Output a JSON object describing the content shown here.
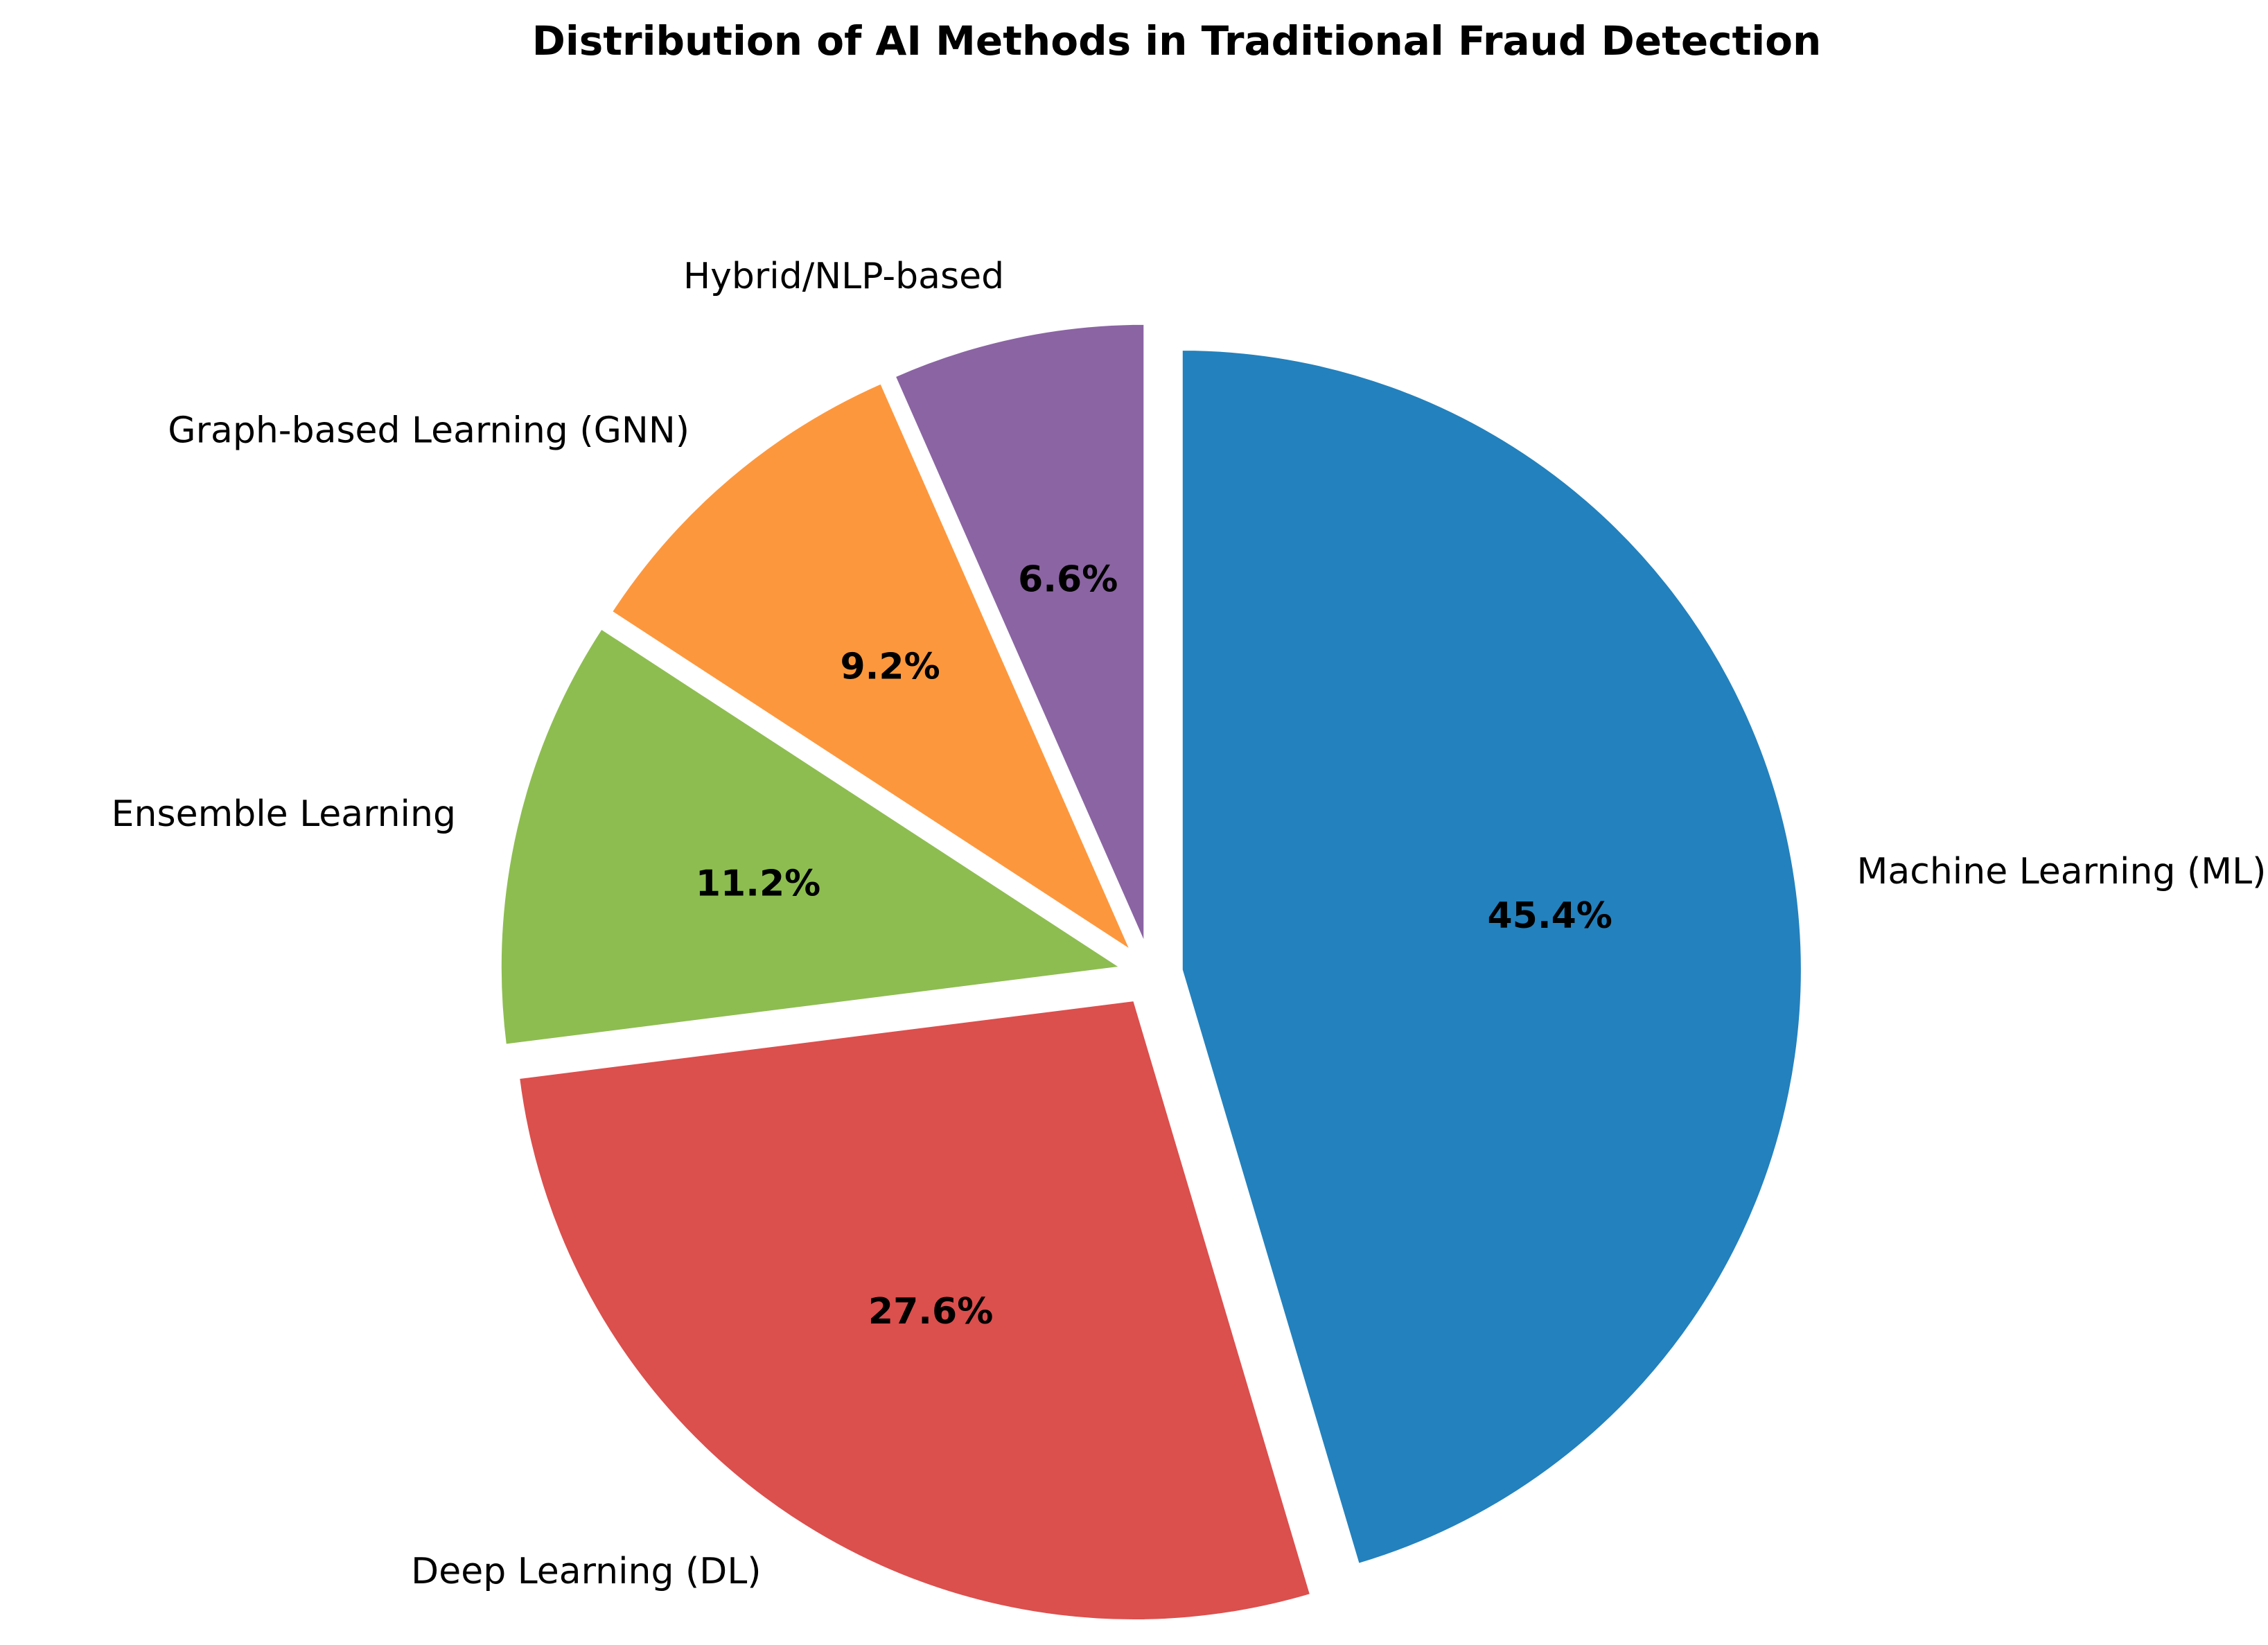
{
  "chart_data": {
    "type": "pie",
    "title": "Distribution of AI Methods in Traditional Fraud Detection",
    "start_angle_deg": 90,
    "direction": "clockwise",
    "exploded": true,
    "slices": [
      {
        "label": "Machine Learning (ML)",
        "value": 45.4,
        "pct_text": "45.4%",
        "color": "#2381bd"
      },
      {
        "label": "Deep Learning (DL)",
        "value": 27.6,
        "pct_text": "27.6%",
        "color": "#db4f4d"
      },
      {
        "label": "Ensemble Learning",
        "value": 11.2,
        "pct_text": "11.2%",
        "color": "#8dbd50"
      },
      {
        "label": "Graph-based Learning (GNN)",
        "value": 9.2,
        "pct_text": "9.2%",
        "color": "#fd973d"
      },
      {
        "label": "Hybrid/NLP-based",
        "value": 6.6,
        "pct_text": "6.6%",
        "color": "#8b64a3"
      }
    ]
  }
}
